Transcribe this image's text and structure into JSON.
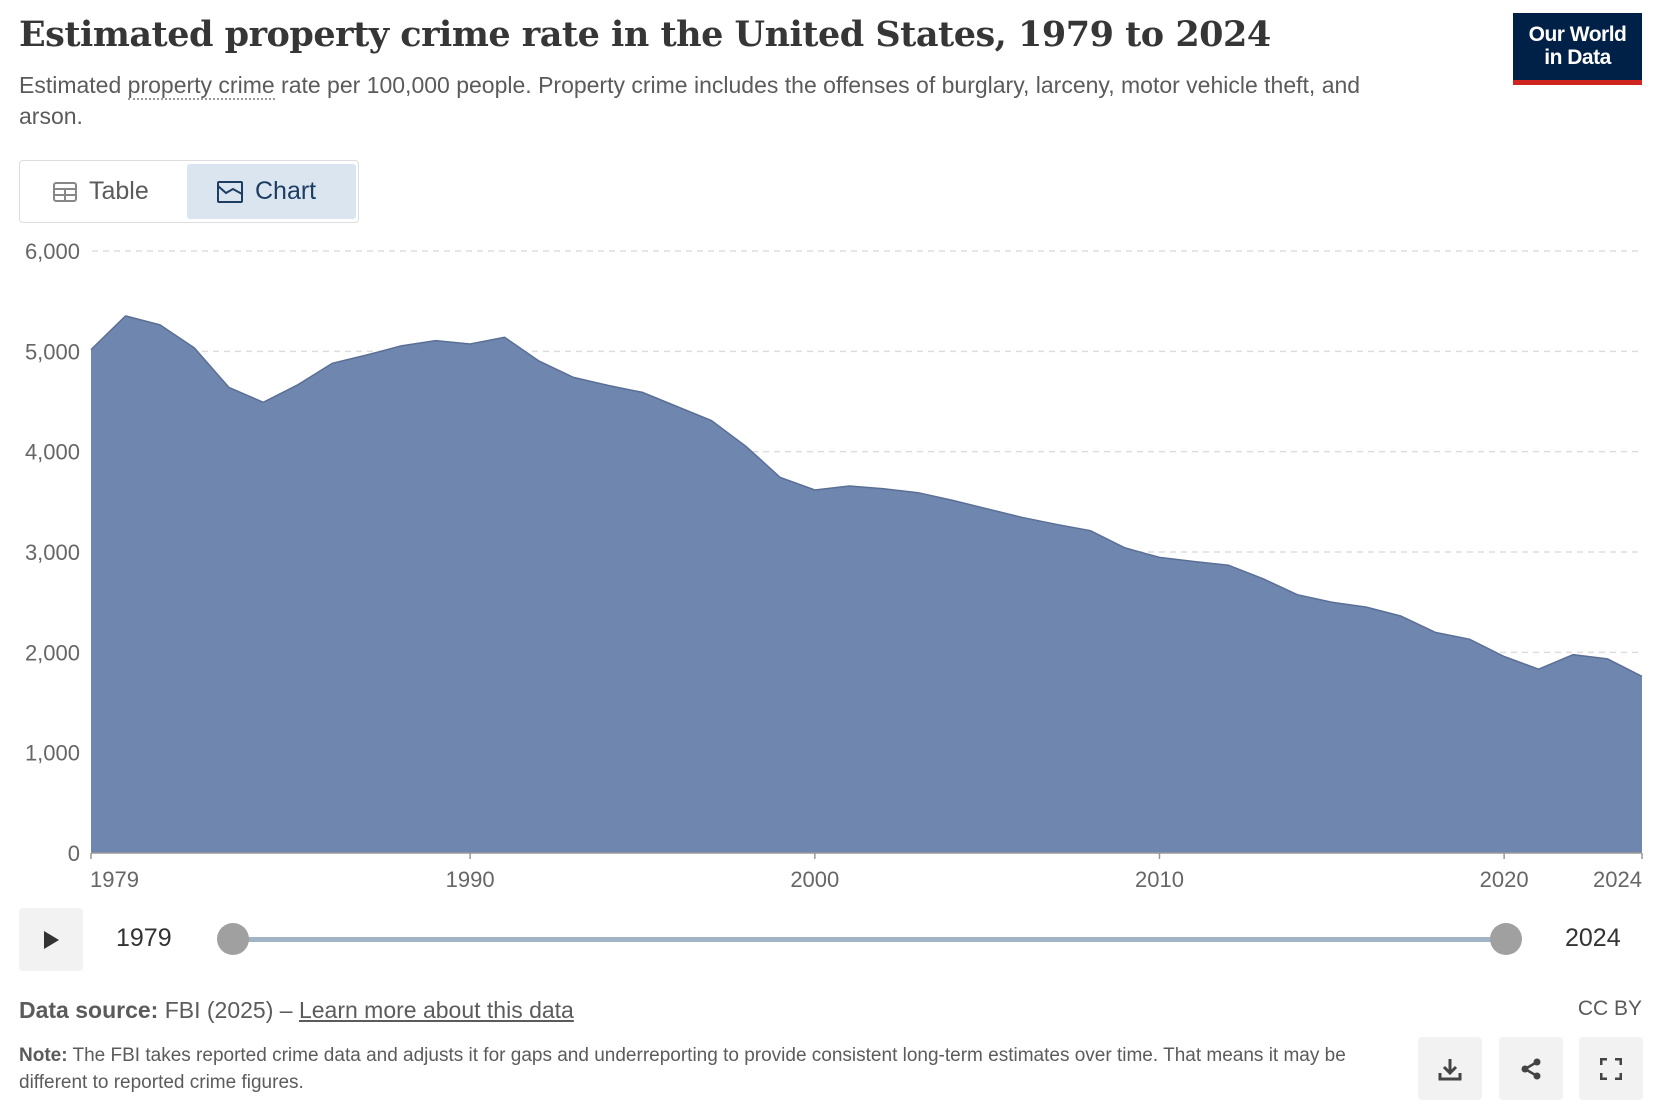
{
  "header": {
    "title": "Estimated property crime rate in the United States, 1979 to 2024",
    "subtitle_pre": "Estimated ",
    "subtitle_link": "property crime",
    "subtitle_post": " rate per 100,000 people. Property crime includes the offenses of burglary, larceny, motor vehicle theft, and arson.",
    "logo_line1": "Our World",
    "logo_line2": "in Data"
  },
  "tabs": {
    "table": "Table",
    "chart": "Chart"
  },
  "timeline": {
    "start": "1979",
    "end": "2024"
  },
  "footer": {
    "source_label": "Data source:",
    "source_text": " FBI (2025) – ",
    "source_link": "Learn more about this data",
    "license": "CC BY",
    "note_label": "Note:",
    "note_text": " The FBI takes reported crime data and adjusts it for gaps and underreporting to provide consistent long-term estimates over time. That means it may be different to reported crime figures."
  },
  "colors": {
    "fill": "#6f86ae",
    "stroke": "#5a6f96",
    "grid": "#dddddd"
  },
  "chart_data": {
    "type": "area",
    "title": "Estimated property crime rate in the United States, 1979 to 2024",
    "ylabel": "Property crime rate per 100,000 people",
    "ylim": [
      0,
      6000
    ],
    "yticks": [
      0,
      1000,
      2000,
      3000,
      4000,
      5000,
      6000
    ],
    "ytick_labels": [
      "0",
      "1,000",
      "2,000",
      "3,000",
      "4,000",
      "5,000",
      "6,000"
    ],
    "xticks": [
      1979,
      1990,
      2000,
      2010,
      2020,
      2024
    ],
    "xtick_labels": [
      "1979",
      "1990",
      "2000",
      "2010",
      "2020",
      "2024"
    ],
    "grid": true,
    "x": [
      1979,
      1980,
      1981,
      1982,
      1983,
      1984,
      1985,
      1986,
      1987,
      1988,
      1989,
      1990,
      1991,
      1992,
      1993,
      1994,
      1995,
      1996,
      1997,
      1998,
      1999,
      2000,
      2001,
      2002,
      2003,
      2004,
      2005,
      2006,
      2007,
      2008,
      2009,
      2010,
      2011,
      2012,
      2013,
      2014,
      2015,
      2016,
      2017,
      2018,
      2019,
      2020,
      2021,
      2022,
      2023,
      2024
    ],
    "values": [
      5017,
      5353,
      5264,
      5033,
      4641,
      4492,
      4666,
      4881,
      4963,
      5054,
      5107,
      5073,
      5140,
      4903,
      4740,
      4660,
      4591,
      4450,
      4311,
      4053,
      3743,
      3618,
      3658,
      3630,
      3591,
      3514,
      3431,
      3346,
      3276,
      3212,
      3041,
      2946,
      2905,
      2868,
      2734,
      2574,
      2500,
      2451,
      2362,
      2200,
      2130,
      1958,
      1832,
      1976,
      1935,
      1760
    ]
  }
}
